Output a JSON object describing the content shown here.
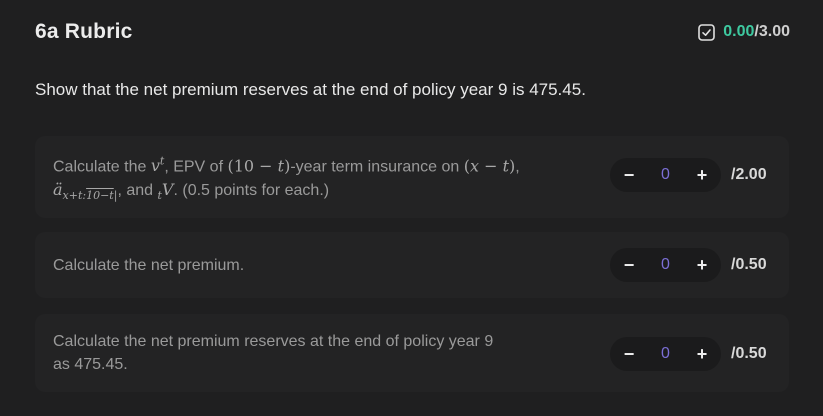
{
  "rubric": {
    "title": "6a Rubric",
    "score": {
      "current": "0.00",
      "separator": "/",
      "total": "3.00"
    },
    "prompt": "Show that the net premium reserves at the end of policy year 9 is 475.45.",
    "items": [
      {
        "line1_a": "Calculate the ",
        "line1_b": ", EPV of ",
        "line1_c": "-year term insurance on ",
        "line1_d": ",",
        "line2_a": "and ",
        "line2_b": ". (0.5 points for each.)",
        "value": "0",
        "max": "/2.00"
      },
      {
        "text": "Calculate the net premium.",
        "value": "0",
        "max": "/0.50"
      },
      {
        "text_line1": "Calculate the net premium reserves at the end of policy year 9",
        "text_line2": "as 475.45.",
        "value": "0",
        "max": "/0.50"
      }
    ],
    "controls": {
      "minus": "−",
      "plus": "+"
    }
  },
  "colors": {
    "accent": "#3ec9a0",
    "value": "#7b6fd6",
    "panel": "#1f1f20",
    "card": "#232324"
  },
  "icons": {
    "score": "checkbox-icon"
  }
}
